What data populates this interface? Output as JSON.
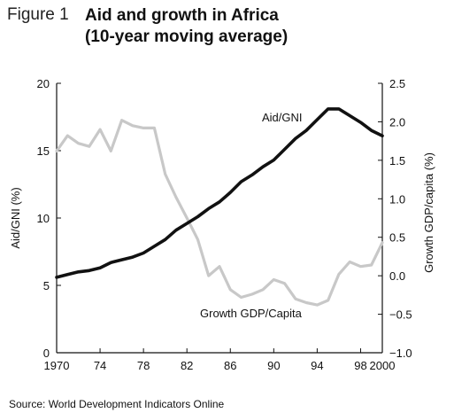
{
  "figure": {
    "label": "Figure 1",
    "title_line1": "Aid and growth in Africa",
    "title_line2": "(10-year moving average)"
  },
  "source": "Source: World Development Indicators Online",
  "chart_data": {
    "type": "line",
    "title": "Aid and growth in Africa (10-year moving average)",
    "xlabel": "",
    "x_ticks": [
      {
        "value": 1970,
        "label": "1970"
      },
      {
        "value": 1974,
        "label": "74"
      },
      {
        "value": 1978,
        "label": "78"
      },
      {
        "value": 1982,
        "label": "82"
      },
      {
        "value": 1986,
        "label": "86"
      },
      {
        "value": 1990,
        "label": "90"
      },
      {
        "value": 1994,
        "label": "94"
      },
      {
        "value": 1998,
        "label": "98"
      },
      {
        "value": 2000,
        "label": "2000"
      }
    ],
    "xlim": [
      1970,
      2000
    ],
    "y_left": {
      "label": "Aid/GNI (%)",
      "lim": [
        0,
        20
      ],
      "ticks": [
        "0",
        "5",
        "10",
        "15",
        "20"
      ],
      "tick_values": [
        0,
        5,
        10,
        15,
        20
      ]
    },
    "y_right": {
      "label": "Growth GDP/capita (%)",
      "lim": [
        -1.0,
        2.5
      ],
      "ticks": [
        "−1.0",
        "−0.5",
        "0.0",
        "0.5",
        "1.0",
        "1.5",
        "2.0",
        "2.5"
      ],
      "tick_values": [
        -1.0,
        -0.5,
        0.0,
        0.5,
        1.0,
        1.5,
        2.0,
        2.5
      ]
    },
    "grid": false,
    "legend": "none",
    "series": [
      {
        "name": "Aid/GNI",
        "axis": "left",
        "color": "#111111",
        "x": [
          1970,
          1971,
          1972,
          1973,
          1974,
          1975,
          1976,
          1977,
          1978,
          1979,
          1980,
          1981,
          1982,
          1983,
          1984,
          1985,
          1986,
          1987,
          1988,
          1989,
          1990,
          1991,
          1992,
          1993,
          1994,
          1995,
          1996,
          1997,
          1998,
          1999,
          2000
        ],
        "values": [
          5.6,
          5.8,
          6.0,
          6.1,
          6.3,
          6.7,
          6.9,
          7.1,
          7.4,
          7.9,
          8.4,
          9.1,
          9.6,
          10.1,
          10.7,
          11.2,
          11.9,
          12.7,
          13.2,
          13.8,
          14.3,
          15.1,
          15.9,
          16.5,
          17.3,
          18.1,
          18.1,
          17.6,
          17.1,
          16.5,
          16.1
        ]
      },
      {
        "name": "Growth GDP/Capita",
        "axis": "right",
        "color": "#c8c8c8",
        "x": [
          1970,
          1971,
          1972,
          1973,
          1974,
          1975,
          1976,
          1977,
          1978,
          1979,
          1980,
          1981,
          1982,
          1983,
          1984,
          1985,
          1986,
          1987,
          1988,
          1989,
          1990,
          1991,
          1992,
          1993,
          1994,
          1995,
          1996,
          1997,
          1998,
          1999,
          2000
        ],
        "values": [
          1.62,
          1.82,
          1.72,
          1.68,
          1.9,
          1.62,
          2.02,
          1.95,
          1.92,
          1.92,
          1.32,
          1.02,
          0.75,
          0.47,
          0.0,
          0.12,
          -0.18,
          -0.28,
          -0.24,
          -0.18,
          -0.05,
          -0.1,
          -0.3,
          -0.35,
          -0.38,
          -0.32,
          0.02,
          0.18,
          0.12,
          0.14,
          0.43
        ]
      }
    ],
    "annotations": [
      {
        "text": "Aid/GNI",
        "series": "Aid/GNI"
      },
      {
        "text": "Growth GDP/Capita",
        "series": "Growth GDP/Capita"
      }
    ]
  }
}
